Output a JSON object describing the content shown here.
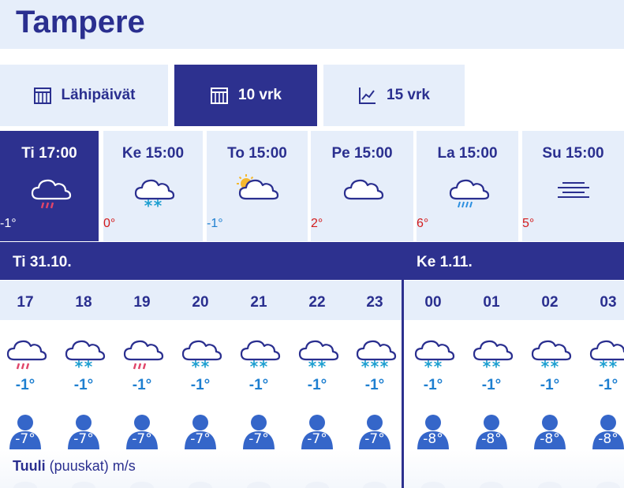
{
  "header": {
    "title": "Tampere"
  },
  "tabs": [
    {
      "label": "Lähipäivät",
      "icon": "calendar-icon",
      "active": false
    },
    {
      "label": "10 vrk",
      "icon": "calendar-icon",
      "active": true
    },
    {
      "label": "15 vrk",
      "icon": "line-chart-icon",
      "active": false
    }
  ],
  "days": [
    {
      "label": "Ti 17:00",
      "icon": "sleet-icon",
      "temp": "-1°",
      "active": true
    },
    {
      "label": "Ke 15:00",
      "icon": "snow-icon",
      "temp": "0°"
    },
    {
      "label": "To 15:00",
      "icon": "partly-sunny-icon",
      "temp": "-1°"
    },
    {
      "label": "Pe 15:00",
      "icon": "cloud-icon",
      "temp": "2°"
    },
    {
      "label": "La 15:00",
      "icon": "rain-icon",
      "temp": "6°"
    },
    {
      "label": "Su 15:00",
      "icon": "fog-icon",
      "temp": "5°"
    }
  ],
  "dates": [
    {
      "label": "Ti  31.10."
    },
    {
      "label": "Ke  1.11."
    }
  ],
  "hours": [
    {
      "hour": "17",
      "icon": "sleet-icon",
      "temp": "-1°",
      "feels": "-7°"
    },
    {
      "hour": "18",
      "icon": "snow-icon",
      "temp": "-1°",
      "feels": "-7°"
    },
    {
      "hour": "19",
      "icon": "sleet-icon",
      "temp": "-1°",
      "feels": "-7°"
    },
    {
      "hour": "20",
      "icon": "snow-icon",
      "temp": "-1°",
      "feels": "-7°"
    },
    {
      "hour": "21",
      "icon": "snow-icon",
      "temp": "-1°",
      "feels": "-7°"
    },
    {
      "hour": "22",
      "icon": "snow-icon",
      "temp": "-1°",
      "feels": "-7°"
    },
    {
      "hour": "23",
      "icon": "heavy-snow-icon",
      "temp": "-1°",
      "feels": "-7°"
    },
    {
      "hour": "00",
      "icon": "snow-icon",
      "temp": "-1°",
      "feels": "-8°"
    },
    {
      "hour": "01",
      "icon": "snow-icon",
      "temp": "-1°",
      "feels": "-8°"
    },
    {
      "hour": "02",
      "icon": "snow-icon",
      "temp": "-1°",
      "feels": "-8°"
    },
    {
      "hour": "03",
      "icon": "snow-icon",
      "temp": "-1°",
      "feels": "-8°"
    }
  ],
  "wind": {
    "label": "Tuuli",
    "sub": "(puuskat) m/s"
  },
  "colors": {
    "primary": "#2d318f",
    "light_bg": "#e6eefa",
    "cold": "#1e7fd0",
    "warm": "#d41c1c",
    "feels": "#3566c9"
  }
}
